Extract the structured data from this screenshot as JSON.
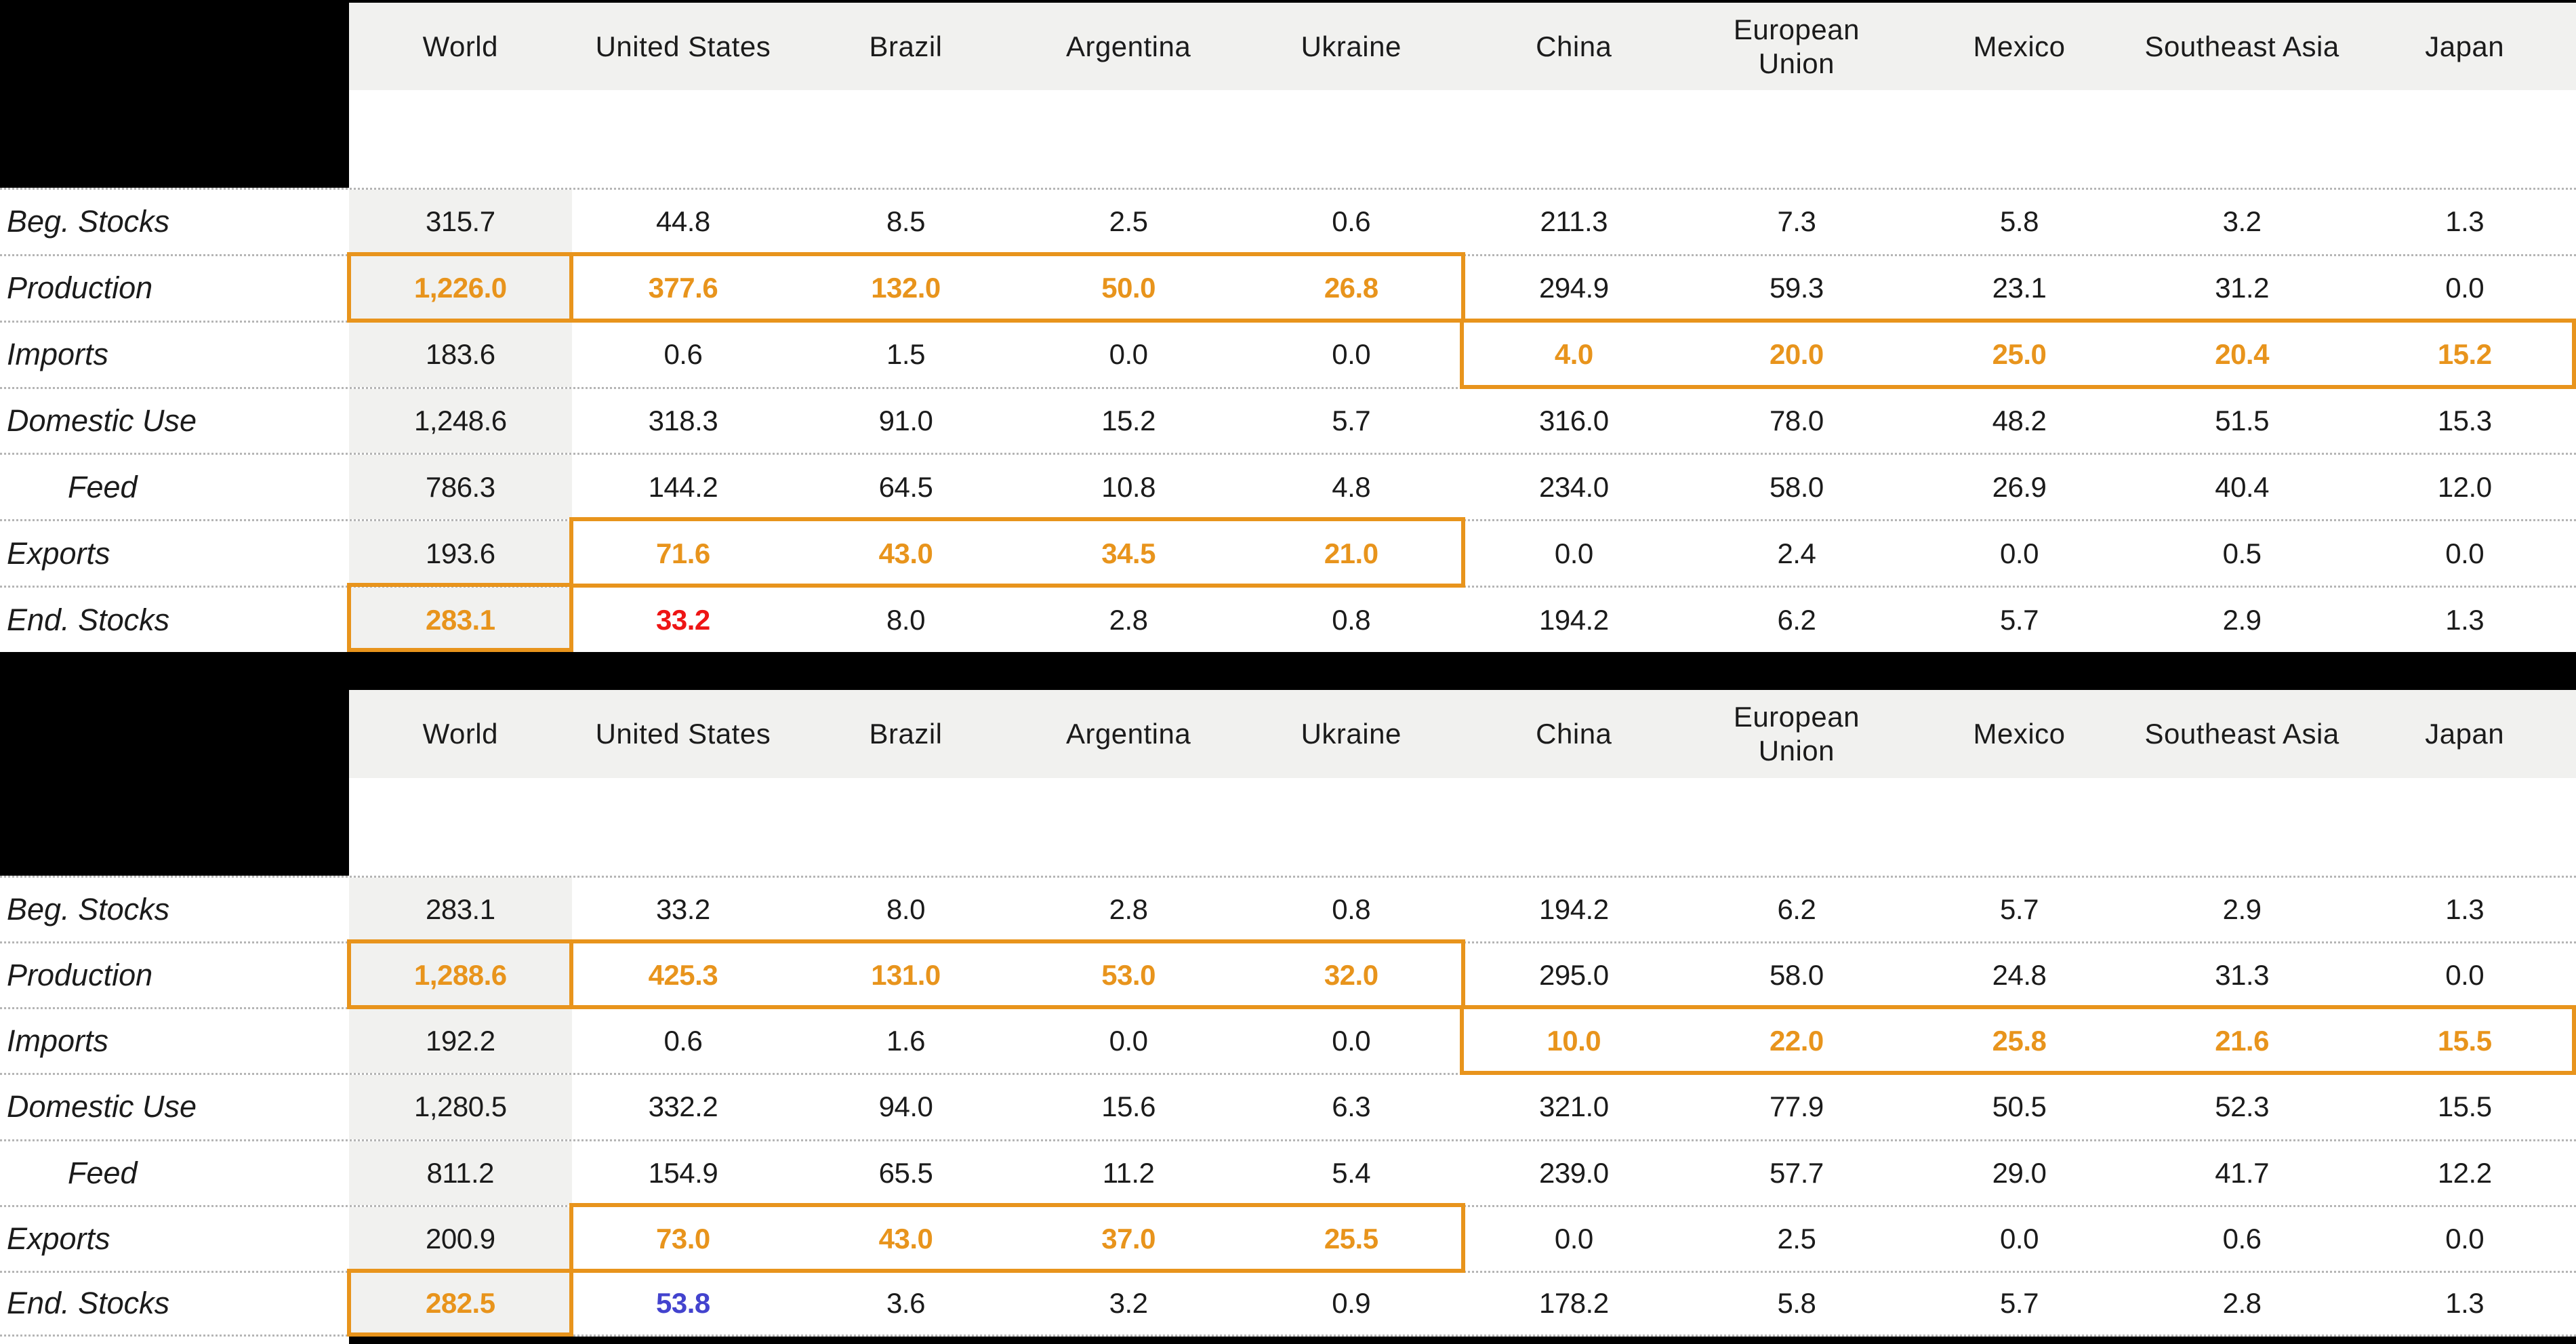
{
  "columns": [
    "World",
    "United States",
    "Brazil",
    "Argentina",
    "Ukraine",
    "China",
    "European Union",
    "Mexico",
    "Southeast Asia",
    "Japan"
  ],
  "row_labels": [
    "Beg. Stocks",
    "Production",
    "Imports",
    "Domestic Use",
    "Feed",
    "Exports",
    "End. Stocks"
  ],
  "colors": {
    "highlight_orange": "#E8941C",
    "alert_red": "#EE1515",
    "note_blue": "#4343CE",
    "text": "#1b1b1b",
    "panel_gray": "#f1f1ef",
    "redaction_black": "#000000"
  },
  "chart_data": [
    {
      "type": "table",
      "title": "",
      "columns": [
        "World",
        "United States",
        "Brazil",
        "Argentina",
        "Ukraine",
        "China",
        "European Union",
        "Mexico",
        "Southeast Asia",
        "Japan"
      ],
      "rows": [
        {
          "label": "Beg. Stocks",
          "indent": false,
          "values": [
            "315.7",
            "44.8",
            "8.5",
            "2.5",
            "0.6",
            "211.3",
            "7.3",
            "5.8",
            "3.2",
            "1.3"
          ],
          "styles": [
            "",
            "",
            "",
            "",
            "",
            "",
            "",
            "",
            "",
            ""
          ]
        },
        {
          "label": "Production",
          "indent": false,
          "values": [
            "1,226.0",
            "377.6",
            "132.0",
            "50.0",
            "26.8",
            "294.9",
            "59.3",
            "23.1",
            "31.2",
            "0.0"
          ],
          "styles": [
            "o",
            "o",
            "o",
            "o",
            "o",
            "",
            "",
            "",
            "",
            ""
          ]
        },
        {
          "label": "Imports",
          "indent": false,
          "values": [
            "183.6",
            "0.6",
            "1.5",
            "0.0",
            "0.0",
            "4.0",
            "20.0",
            "25.0",
            "20.4",
            "15.2"
          ],
          "styles": [
            "",
            "",
            "",
            "",
            "",
            "o",
            "o",
            "o",
            "o",
            "o"
          ]
        },
        {
          "label": "Domestic Use",
          "indent": false,
          "values": [
            "1,248.6",
            "318.3",
            "91.0",
            "15.2",
            "5.7",
            "316.0",
            "78.0",
            "48.2",
            "51.5",
            "15.3"
          ],
          "styles": [
            "",
            "",
            "",
            "",
            "",
            "",
            "",
            "",
            "",
            ""
          ]
        },
        {
          "label": "Feed",
          "indent": true,
          "values": [
            "786.3",
            "144.2",
            "64.5",
            "10.8",
            "4.8",
            "234.0",
            "58.0",
            "26.9",
            "40.4",
            "12.0"
          ],
          "styles": [
            "",
            "",
            "",
            "",
            "",
            "",
            "",
            "",
            "",
            ""
          ]
        },
        {
          "label": "Exports",
          "indent": false,
          "values": [
            "193.6",
            "71.6",
            "43.0",
            "34.5",
            "21.0",
            "0.0",
            "2.4",
            "0.0",
            "0.5",
            "0.0"
          ],
          "styles": [
            "",
            "o",
            "o",
            "o",
            "o",
            "",
            "",
            "",
            "",
            ""
          ]
        },
        {
          "label": "End. Stocks",
          "indent": false,
          "values": [
            "283.1",
            "33.2",
            "8.0",
            "2.8",
            "0.8",
            "194.2",
            "6.2",
            "5.7",
            "2.9",
            "1.3"
          ],
          "styles": [
            "o",
            "r",
            "",
            "",
            "",
            "",
            "",
            "",
            "",
            ""
          ]
        }
      ]
    },
    {
      "type": "table",
      "title": "",
      "columns": [
        "World",
        "United States",
        "Brazil",
        "Argentina",
        "Ukraine",
        "China",
        "European Union",
        "Mexico",
        "Southeast Asia",
        "Japan"
      ],
      "rows": [
        {
          "label": "Beg. Stocks",
          "indent": false,
          "values": [
            "283.1",
            "33.2",
            "8.0",
            "2.8",
            "0.8",
            "194.2",
            "6.2",
            "5.7",
            "2.9",
            "1.3"
          ],
          "styles": [
            "",
            "",
            "",
            "",
            "",
            "",
            "",
            "",
            "",
            ""
          ]
        },
        {
          "label": "Production",
          "indent": false,
          "values": [
            "1,288.6",
            "425.3",
            "131.0",
            "53.0",
            "32.0",
            "295.0",
            "58.0",
            "24.8",
            "31.3",
            "0.0"
          ],
          "styles": [
            "o",
            "o",
            "o",
            "o",
            "o",
            "",
            "",
            "",
            "",
            ""
          ]
        },
        {
          "label": "Imports",
          "indent": false,
          "values": [
            "192.2",
            "0.6",
            "1.6",
            "0.0",
            "0.0",
            "10.0",
            "22.0",
            "25.8",
            "21.6",
            "15.5"
          ],
          "styles": [
            "",
            "",
            "",
            "",
            "",
            "o",
            "o",
            "o",
            "o",
            "o"
          ]
        },
        {
          "label": "Domestic Use",
          "indent": false,
          "values": [
            "1,280.5",
            "332.2",
            "94.0",
            "15.6",
            "6.3",
            "321.0",
            "77.9",
            "50.5",
            "52.3",
            "15.5"
          ],
          "styles": [
            "",
            "",
            "",
            "",
            "",
            "",
            "",
            "",
            "",
            ""
          ]
        },
        {
          "label": "Feed",
          "indent": true,
          "values": [
            "811.2",
            "154.9",
            "65.5",
            "11.2",
            "5.4",
            "239.0",
            "57.7",
            "29.0",
            "41.7",
            "12.2"
          ],
          "styles": [
            "",
            "",
            "",
            "",
            "",
            "",
            "",
            "",
            "",
            ""
          ]
        },
        {
          "label": "Exports",
          "indent": false,
          "values": [
            "200.9",
            "73.0",
            "43.0",
            "37.0",
            "25.5",
            "0.0",
            "2.5",
            "0.0",
            "0.6",
            "0.0"
          ],
          "styles": [
            "",
            "o",
            "o",
            "o",
            "o",
            "",
            "",
            "",
            "",
            ""
          ]
        },
        {
          "label": "End. Stocks",
          "indent": false,
          "values": [
            "282.5",
            "53.8",
            "3.6",
            "3.2",
            "0.9",
            "178.2",
            "5.8",
            "5.7",
            "2.8",
            "1.3"
          ],
          "styles": [
            "o",
            "b",
            "",
            "",
            "",
            "",
            "",
            "",
            "",
            ""
          ]
        }
      ]
    }
  ]
}
